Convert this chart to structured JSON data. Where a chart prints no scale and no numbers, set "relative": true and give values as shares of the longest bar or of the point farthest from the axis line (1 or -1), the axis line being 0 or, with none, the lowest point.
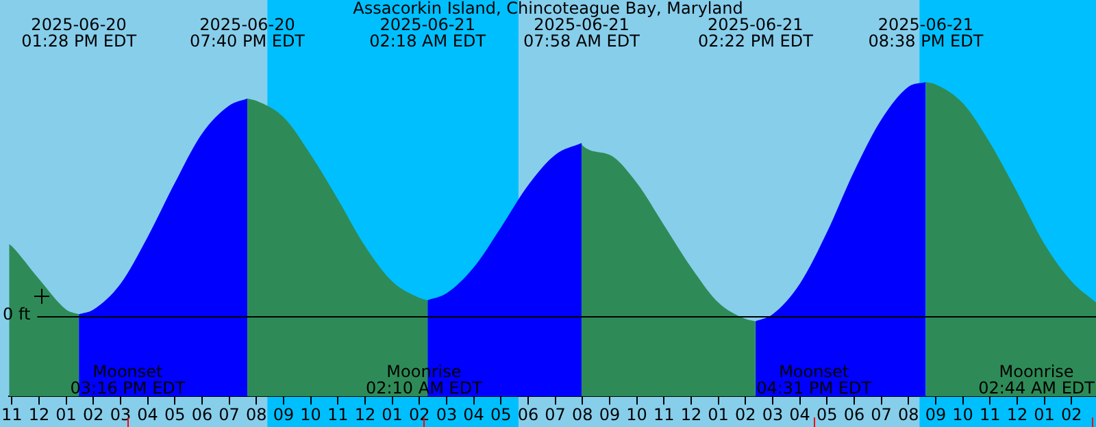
{
  "chart_data": {
    "type": "area",
    "title": "Assacorkin Island, Chincoteague Bay, Maryland",
    "relative": true,
    "x": [
      "2025-06-20T10:54",
      "2025-06-20T11:00",
      "2025-06-20T12:00",
      "2025-06-20T13:00",
      "2025-06-20T13:28",
      "2025-06-20T14:00",
      "2025-06-20T15:00",
      "2025-06-20T16:00",
      "2025-06-20T17:00",
      "2025-06-20T18:00",
      "2025-06-20T19:00",
      "2025-06-20T19:40",
      "2025-06-20T20:00",
      "2025-06-20T21:00",
      "2025-06-20T22:00",
      "2025-06-20T23:00",
      "2025-06-21T00:00",
      "2025-06-21T01:00",
      "2025-06-21T02:00",
      "2025-06-21T02:18",
      "2025-06-21T03:00",
      "2025-06-21T04:00",
      "2025-06-21T05:00",
      "2025-06-21T06:00",
      "2025-06-21T07:00",
      "2025-06-21T07:58",
      "2025-06-21T08:00",
      "2025-06-21T09:00",
      "2025-06-21T10:00",
      "2025-06-21T11:00",
      "2025-06-21T12:00",
      "2025-06-21T13:00",
      "2025-06-21T14:00",
      "2025-06-21T14:22",
      "2025-06-21T15:00",
      "2025-06-21T16:00",
      "2025-06-21T17:00",
      "2025-06-21T18:00",
      "2025-06-21T19:00",
      "2025-06-21T20:00",
      "2025-06-21T20:38",
      "2025-06-21T21:00",
      "2025-06-21T22:00",
      "2025-06-21T23:00",
      "2025-06-22T00:00",
      "2025-06-22T01:00",
      "2025-06-22T02:00",
      "2025-06-22T02:54"
    ],
    "series": [
      {
        "color": "#2e8b57",
        "values": [
          0.31,
          0.3,
          0.16,
          0.03,
          0.01,
          null,
          null,
          null,
          null,
          null,
          null,
          0.93,
          0.92,
          0.85,
          0.69,
          0.5,
          0.3,
          0.15,
          0.08,
          0.07,
          null,
          null,
          null,
          null,
          null,
          0.74,
          0.73,
          0.69,
          0.57,
          0.39,
          0.21,
          0.06,
          -0.01,
          -0.02,
          null,
          null,
          null,
          null,
          null,
          null,
          1.0,
          0.99,
          0.91,
          0.74,
          0.53,
          0.31,
          0.15,
          0.06
        ]
      },
      {
        "color": "#0000ff",
        "values": [
          null,
          null,
          null,
          null,
          0.01,
          0.03,
          0.14,
          0.34,
          0.57,
          0.78,
          0.9,
          0.93,
          null,
          null,
          null,
          null,
          null,
          null,
          null,
          0.07,
          0.1,
          0.21,
          0.38,
          0.56,
          0.69,
          0.74,
          null,
          null,
          null,
          null,
          null,
          null,
          null,
          -0.02,
          0.01,
          0.14,
          0.36,
          0.62,
          0.84,
          0.98,
          1.0,
          null,
          null,
          null,
          null,
          null,
          null,
          null
        ]
      }
    ],
    "xlim": [
      "2025-06-20T10:54",
      "2025-06-22T02:54"
    ],
    "xticks": [
      {
        "value": "2025-06-20T11:00",
        "label": "11"
      },
      {
        "value": "2025-06-20T12:00",
        "label": "12"
      },
      {
        "value": "2025-06-20T13:00",
        "label": "01"
      },
      {
        "value": "2025-06-20T14:00",
        "label": "02"
      },
      {
        "value": "2025-06-20T15:00",
        "label": "03"
      },
      {
        "value": "2025-06-20T16:00",
        "label": "04"
      },
      {
        "value": "2025-06-20T17:00",
        "label": "05"
      },
      {
        "value": "2025-06-20T18:00",
        "label": "06"
      },
      {
        "value": "2025-06-20T19:00",
        "label": "07"
      },
      {
        "value": "2025-06-20T20:00",
        "label": "08"
      },
      {
        "value": "2025-06-20T21:00",
        "label": "09"
      },
      {
        "value": "2025-06-20T22:00",
        "label": "10"
      },
      {
        "value": "2025-06-20T23:00",
        "label": "11"
      },
      {
        "value": "2025-06-21T00:00",
        "label": "12"
      },
      {
        "value": "2025-06-21T01:00",
        "label": "01"
      },
      {
        "value": "2025-06-21T02:00",
        "label": "02"
      },
      {
        "value": "2025-06-21T03:00",
        "label": "03"
      },
      {
        "value": "2025-06-21T04:00",
        "label": "04"
      },
      {
        "value": "2025-06-21T05:00",
        "label": "05"
      },
      {
        "value": "2025-06-21T06:00",
        "label": "06"
      },
      {
        "value": "2025-06-21T07:00",
        "label": "07"
      },
      {
        "value": "2025-06-21T08:00",
        "label": "08"
      },
      {
        "value": "2025-06-21T09:00",
        "label": "09"
      },
      {
        "value": "2025-06-21T10:00",
        "label": "10"
      },
      {
        "value": "2025-06-21T11:00",
        "label": "11"
      },
      {
        "value": "2025-06-21T12:00",
        "label": "12"
      },
      {
        "value": "2025-06-21T13:00",
        "label": "01"
      },
      {
        "value": "2025-06-21T14:00",
        "label": "02"
      },
      {
        "value": "2025-06-21T15:00",
        "label": "03"
      },
      {
        "value": "2025-06-21T16:00",
        "label": "04"
      },
      {
        "value": "2025-06-21T17:00",
        "label": "05"
      },
      {
        "value": "2025-06-21T18:00",
        "label": "06"
      },
      {
        "value": "2025-06-21T19:00",
        "label": "07"
      },
      {
        "value": "2025-06-21T20:00",
        "label": "08"
      },
      {
        "value": "2025-06-21T21:00",
        "label": "09"
      },
      {
        "value": "2025-06-21T22:00",
        "label": "10"
      },
      {
        "value": "2025-06-21T23:00",
        "label": "11"
      },
      {
        "value": "2025-06-22T00:00",
        "label": "12"
      },
      {
        "value": "2025-06-22T01:00",
        "label": "01"
      },
      {
        "value": "2025-06-22T02:00",
        "label": "02"
      }
    ],
    "ref_lines": [
      {
        "axis": "y",
        "value": 0,
        "label": "0 ft",
        "color": "#000000"
      },
      {
        "axis": "x",
        "value": "2025-06-20T15:16",
        "label": "Moonset\n03:16 PM EDT",
        "color": "#ff0000"
      },
      {
        "axis": "x",
        "value": "2025-06-21T02:10",
        "label": "Moonrise\n02:10 AM EDT",
        "color": "#ff0000"
      },
      {
        "axis": "x",
        "value": "2025-06-21T16:31",
        "label": "Moonset\n04:31 PM EDT",
        "color": "#ff0000"
      },
      {
        "axis": "x",
        "value": "2025-06-22T02:44",
        "label": "Moonrise\n02:44 AM EDT",
        "color": "#ff0000"
      }
    ],
    "bands": [
      {
        "axis": "x",
        "from": "2025-06-20T10:54",
        "to": "2025-06-20T20:24",
        "color": "#87ceeb",
        "label": null
      },
      {
        "axis": "x",
        "from": "2025-06-20T20:24",
        "to": "2025-06-21T05:39",
        "color": "#00bfff",
        "label": null
      },
      {
        "axis": "x",
        "from": "2025-06-21T05:39",
        "to": "2025-06-21T20:24",
        "color": "#87ceeb",
        "label": null
      },
      {
        "axis": "x",
        "from": "2025-06-21T20:24",
        "to": "2025-06-22T02:54",
        "color": "#00bfff",
        "label": null
      }
    ],
    "annotations": [
      "2025-06-20\n01:28 PM EDT",
      "2025-06-20\n07:40 PM EDT",
      "2025-06-21\n02:18 AM EDT",
      "2025-06-21\n07:58 AM EDT",
      "2025-06-21\n02:22 PM EDT",
      "2025-06-21\n08:38 PM EDT"
    ]
  }
}
